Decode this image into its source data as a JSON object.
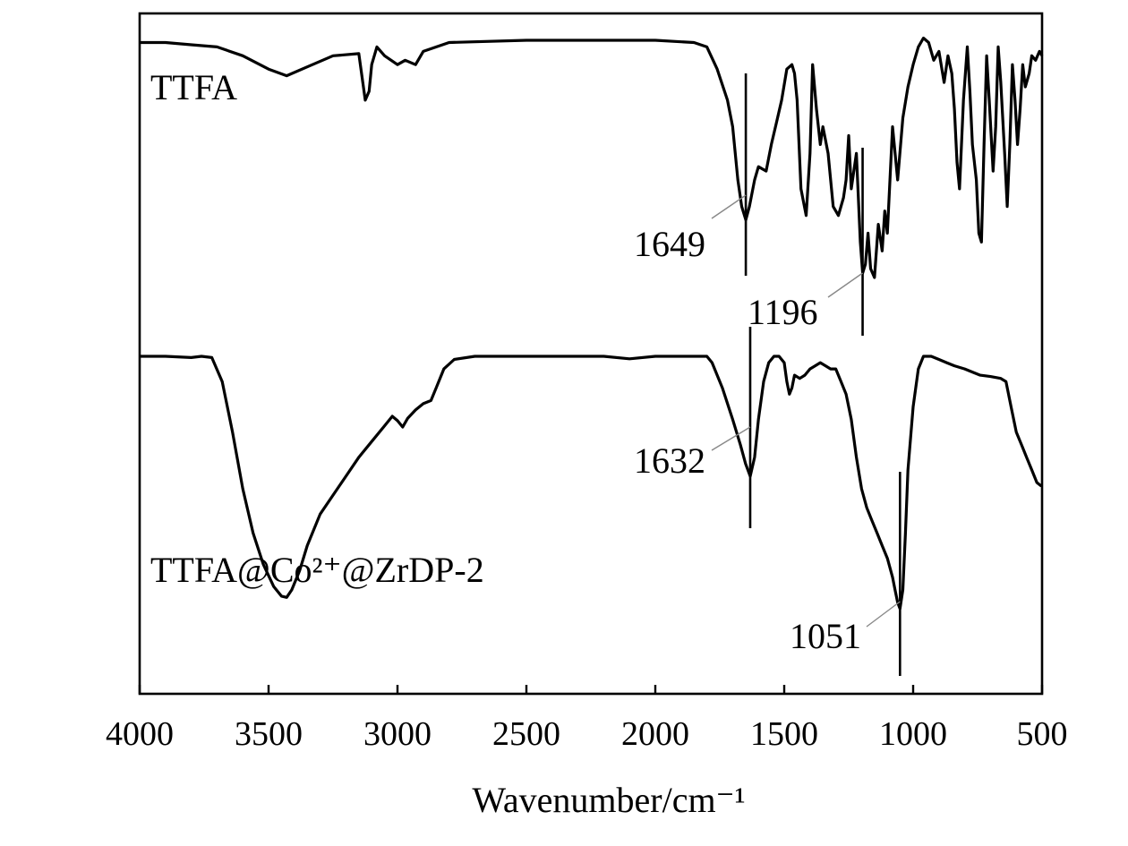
{
  "chart_data": {
    "type": "line",
    "title": "",
    "xlabel": "Wavenumber/cm⁻¹",
    "ylabel": "",
    "xlim": [
      4000,
      500
    ],
    "x_reversed": true,
    "x_ticks": [
      4000,
      3500,
      3000,
      2500,
      2000,
      1500,
      1000,
      500
    ],
    "grid": false,
    "legend": "none",
    "series": [
      {
        "name": "TTFA",
        "color": "#000000",
        "points": [
          [
            4000,
            0.93
          ],
          [
            3900,
            0.93
          ],
          [
            3800,
            0.925
          ],
          [
            3700,
            0.92
          ],
          [
            3600,
            0.9
          ],
          [
            3500,
            0.87
          ],
          [
            3430,
            0.855
          ],
          [
            3350,
            0.875
          ],
          [
            3250,
            0.9
          ],
          [
            3150,
            0.905
          ],
          [
            3125,
            0.8
          ],
          [
            3110,
            0.82
          ],
          [
            3100,
            0.88
          ],
          [
            3080,
            0.92
          ],
          [
            3050,
            0.9
          ],
          [
            3000,
            0.88
          ],
          [
            2970,
            0.89
          ],
          [
            2930,
            0.88
          ],
          [
            2900,
            0.91
          ],
          [
            2800,
            0.93
          ],
          [
            2500,
            0.935
          ],
          [
            2000,
            0.935
          ],
          [
            1850,
            0.93
          ],
          [
            1800,
            0.92
          ],
          [
            1760,
            0.87
          ],
          [
            1720,
            0.8
          ],
          [
            1700,
            0.74
          ],
          [
            1680,
            0.62
          ],
          [
            1665,
            0.56
          ],
          [
            1649,
            0.53
          ],
          [
            1635,
            0.56
          ],
          [
            1615,
            0.62
          ],
          [
            1600,
            0.65
          ],
          [
            1570,
            0.64
          ],
          [
            1550,
            0.7
          ],
          [
            1530,
            0.75
          ],
          [
            1510,
            0.8
          ],
          [
            1490,
            0.87
          ],
          [
            1470,
            0.88
          ],
          [
            1460,
            0.86
          ],
          [
            1450,
            0.8
          ],
          [
            1435,
            0.6
          ],
          [
            1415,
            0.54
          ],
          [
            1400,
            0.68
          ],
          [
            1390,
            0.88
          ],
          [
            1375,
            0.78
          ],
          [
            1360,
            0.7
          ],
          [
            1350,
            0.74
          ],
          [
            1330,
            0.68
          ],
          [
            1310,
            0.56
          ],
          [
            1290,
            0.54
          ],
          [
            1270,
            0.58
          ],
          [
            1260,
            0.62
          ],
          [
            1250,
            0.72
          ],
          [
            1240,
            0.6
          ],
          [
            1220,
            0.68
          ],
          [
            1205,
            0.48
          ],
          [
            1196,
            0.41
          ],
          [
            1185,
            0.43
          ],
          [
            1175,
            0.5
          ],
          [
            1165,
            0.42
          ],
          [
            1150,
            0.4
          ],
          [
            1135,
            0.52
          ],
          [
            1120,
            0.46
          ],
          [
            1110,
            0.55
          ],
          [
            1100,
            0.5
          ],
          [
            1090,
            0.62
          ],
          [
            1080,
            0.74
          ],
          [
            1060,
            0.62
          ],
          [
            1040,
            0.76
          ],
          [
            1020,
            0.83
          ],
          [
            1000,
            0.88
          ],
          [
            980,
            0.92
          ],
          [
            960,
            0.94
          ],
          [
            940,
            0.93
          ],
          [
            920,
            0.89
          ],
          [
            900,
            0.91
          ],
          [
            880,
            0.84
          ],
          [
            865,
            0.9
          ],
          [
            850,
            0.86
          ],
          [
            840,
            0.78
          ],
          [
            830,
            0.66
          ],
          [
            820,
            0.6
          ],
          [
            805,
            0.8
          ],
          [
            790,
            0.92
          ],
          [
            780,
            0.82
          ],
          [
            770,
            0.7
          ],
          [
            755,
            0.62
          ],
          [
            745,
            0.5
          ],
          [
            735,
            0.48
          ],
          [
            725,
            0.7
          ],
          [
            715,
            0.9
          ],
          [
            705,
            0.8
          ],
          [
            690,
            0.64
          ],
          [
            680,
            0.74
          ],
          [
            670,
            0.92
          ],
          [
            660,
            0.84
          ],
          [
            645,
            0.68
          ],
          [
            635,
            0.56
          ],
          [
            625,
            0.7
          ],
          [
            615,
            0.88
          ],
          [
            605,
            0.8
          ],
          [
            595,
            0.7
          ],
          [
            585,
            0.78
          ],
          [
            575,
            0.88
          ],
          [
            565,
            0.83
          ],
          [
            550,
            0.86
          ],
          [
            540,
            0.9
          ],
          [
            525,
            0.89
          ],
          [
            510,
            0.91
          ],
          [
            500,
            0.9
          ]
        ]
      },
      {
        "name": "TTFA@Co²⁺@ZrDP-2",
        "color": "#000000",
        "points": [
          [
            4000,
            0.48
          ],
          [
            3900,
            0.48
          ],
          [
            3800,
            0.478
          ],
          [
            3760,
            0.48
          ],
          [
            3720,
            0.478
          ],
          [
            3680,
            0.44
          ],
          [
            3640,
            0.36
          ],
          [
            3600,
            0.27
          ],
          [
            3560,
            0.2
          ],
          [
            3520,
            0.15
          ],
          [
            3480,
            0.115
          ],
          [
            3450,
            0.1
          ],
          [
            3430,
            0.098
          ],
          [
            3410,
            0.11
          ],
          [
            3380,
            0.14
          ],
          [
            3350,
            0.18
          ],
          [
            3300,
            0.23
          ],
          [
            3250,
            0.26
          ],
          [
            3200,
            0.29
          ],
          [
            3150,
            0.32
          ],
          [
            3100,
            0.345
          ],
          [
            3050,
            0.37
          ],
          [
            3020,
            0.385
          ],
          [
            3000,
            0.378
          ],
          [
            2980,
            0.368
          ],
          [
            2960,
            0.382
          ],
          [
            2930,
            0.395
          ],
          [
            2900,
            0.405
          ],
          [
            2870,
            0.41
          ],
          [
            2850,
            0.43
          ],
          [
            2820,
            0.46
          ],
          [
            2780,
            0.475
          ],
          [
            2700,
            0.48
          ],
          [
            2500,
            0.48
          ],
          [
            2200,
            0.48
          ],
          [
            2100,
            0.476
          ],
          [
            2000,
            0.48
          ],
          [
            1800,
            0.48
          ],
          [
            1780,
            0.47
          ],
          [
            1740,
            0.43
          ],
          [
            1700,
            0.38
          ],
          [
            1670,
            0.34
          ],
          [
            1650,
            0.31
          ],
          [
            1632,
            0.29
          ],
          [
            1615,
            0.32
          ],
          [
            1600,
            0.38
          ],
          [
            1580,
            0.44
          ],
          [
            1560,
            0.47
          ],
          [
            1540,
            0.48
          ],
          [
            1520,
            0.48
          ],
          [
            1500,
            0.47
          ],
          [
            1490,
            0.44
          ],
          [
            1480,
            0.42
          ],
          [
            1470,
            0.43
          ],
          [
            1460,
            0.45
          ],
          [
            1440,
            0.445
          ],
          [
            1420,
            0.45
          ],
          [
            1400,
            0.46
          ],
          [
            1380,
            0.465
          ],
          [
            1360,
            0.47
          ],
          [
            1340,
            0.465
          ],
          [
            1320,
            0.46
          ],
          [
            1300,
            0.46
          ],
          [
            1280,
            0.44
          ],
          [
            1260,
            0.42
          ],
          [
            1240,
            0.38
          ],
          [
            1220,
            0.32
          ],
          [
            1200,
            0.27
          ],
          [
            1180,
            0.24
          ],
          [
            1160,
            0.22
          ],
          [
            1140,
            0.2
          ],
          [
            1120,
            0.18
          ],
          [
            1100,
            0.16
          ],
          [
            1080,
            0.13
          ],
          [
            1070,
            0.11
          ],
          [
            1060,
            0.09
          ],
          [
            1051,
            0.08
          ],
          [
            1040,
            0.11
          ],
          [
            1030,
            0.2
          ],
          [
            1020,
            0.3
          ],
          [
            1000,
            0.4
          ],
          [
            980,
            0.46
          ],
          [
            960,
            0.48
          ],
          [
            930,
            0.48
          ],
          [
            900,
            0.475
          ],
          [
            870,
            0.47
          ],
          [
            840,
            0.465
          ],
          [
            800,
            0.46
          ],
          [
            770,
            0.455
          ],
          [
            740,
            0.45
          ],
          [
            700,
            0.448
          ],
          [
            660,
            0.445
          ],
          [
            640,
            0.44
          ],
          [
            620,
            0.4
          ],
          [
            600,
            0.36
          ],
          [
            580,
            0.34
          ],
          [
            560,
            0.32
          ],
          [
            540,
            0.3
          ],
          [
            520,
            0.28
          ],
          [
            505,
            0.275
          ],
          [
            500,
            0.275
          ]
        ]
      }
    ],
    "annotations": [
      {
        "text": "1649",
        "x": 1649
      },
      {
        "text": "1196",
        "x": 1196
      },
      {
        "text": "1632",
        "x": 1632
      },
      {
        "text": "1051",
        "x": 1051
      }
    ]
  }
}
